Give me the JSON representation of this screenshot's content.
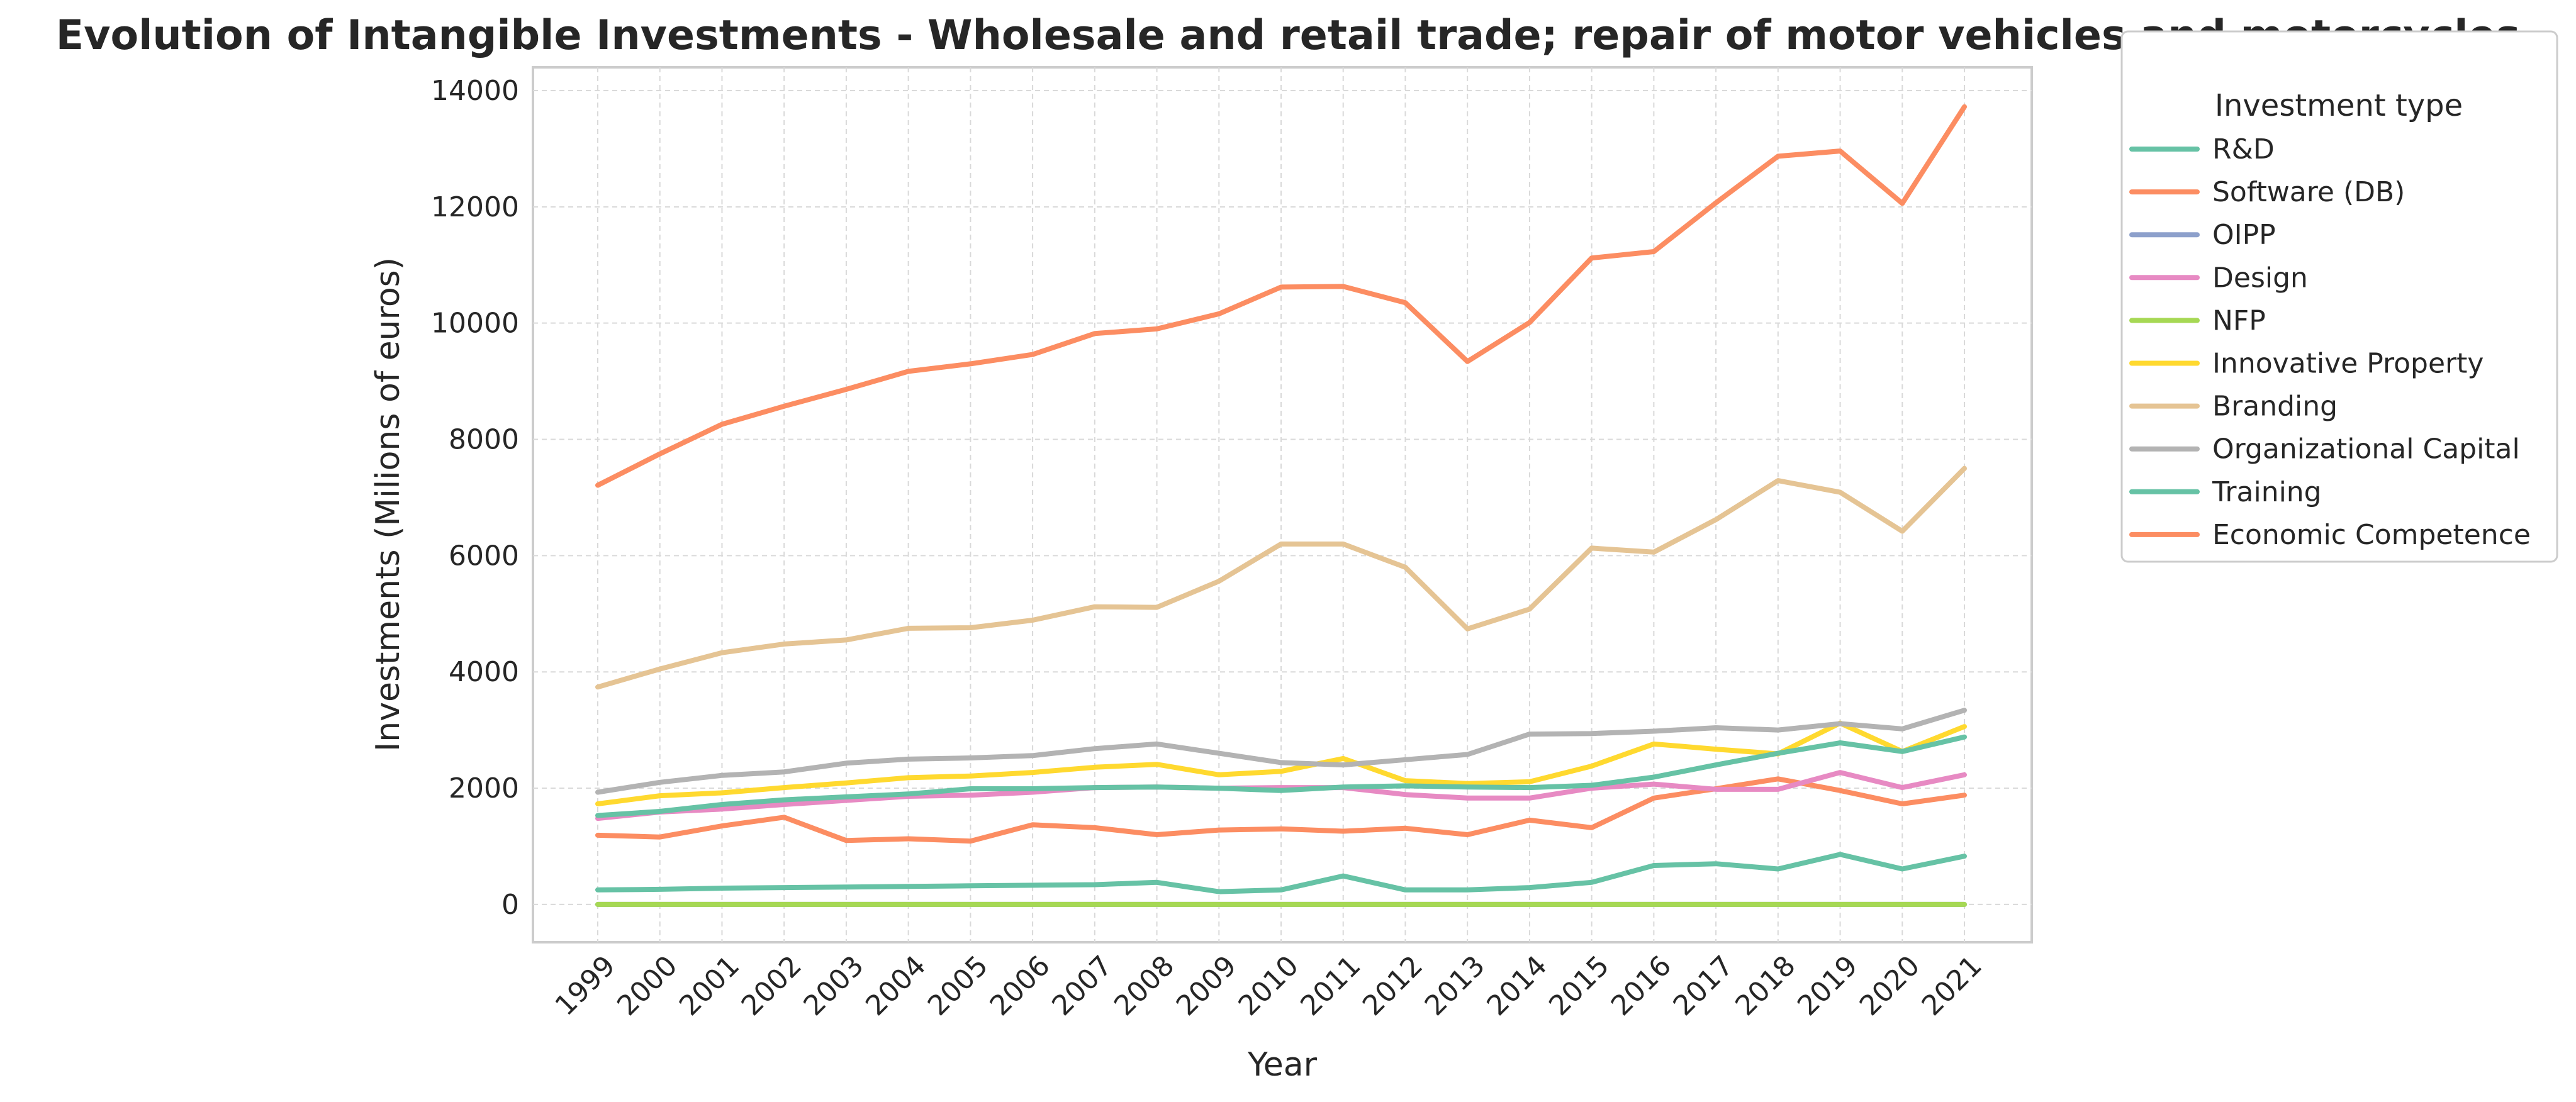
{
  "chart_data": {
    "type": "line",
    "title": "Evolution of Intangible Investments - Wholesale and retail trade; repair of motor vehicles and motorcycles",
    "xlabel": "Year",
    "ylabel": "Investments (Milions of euros)",
    "ylim": [
      -650,
      14400
    ],
    "yticks": [
      0,
      2000,
      4000,
      6000,
      8000,
      10000,
      12000,
      14000
    ],
    "ytick_labels": [
      "0",
      "2000",
      "4000",
      "6000",
      "8000",
      "10000",
      "12000",
      "14000"
    ],
    "grid": true,
    "legend": {
      "title": "Investment type",
      "placement": "outside-right-top"
    },
    "categories": [
      "1999",
      "2000",
      "2001",
      "2002",
      "2003",
      "2004",
      "2005",
      "2006",
      "2007",
      "2008",
      "2009",
      "2010",
      "2011",
      "2012",
      "2013",
      "2014",
      "2015",
      "2016",
      "2017",
      "2018",
      "2019",
      "2020",
      "2021"
    ],
    "series": [
      {
        "name": "R&D",
        "color": "#66c2a5",
        "values": [
          250,
          260,
          280,
          290,
          300,
          310,
          320,
          330,
          340,
          380,
          220,
          250,
          490,
          250,
          250,
          290,
          380,
          670,
          700,
          610,
          860,
          610,
          830
        ]
      },
      {
        "name": "Software (DB)",
        "color": "#fc8d62",
        "values": [
          1190,
          1160,
          1350,
          1500,
          1100,
          1130,
          1090,
          1370,
          1320,
          1200,
          1280,
          1300,
          1260,
          1310,
          1200,
          1450,
          1320,
          1830,
          1990,
          2160,
          1960,
          1730,
          1880
        ]
      },
      {
        "name": "OIPP",
        "color": "#8da0cb",
        "values": [
          0,
          0,
          0,
          0,
          0,
          0,
          0,
          0,
          0,
          0,
          0,
          0,
          0,
          0,
          0,
          0,
          0,
          0,
          0,
          0,
          0,
          0,
          0
        ]
      },
      {
        "name": "Design",
        "color": "#e78ac3",
        "values": [
          1480,
          1590,
          1640,
          1720,
          1790,
          1860,
          1880,
          1930,
          2010,
          2020,
          2000,
          2010,
          2010,
          1890,
          1830,
          1830,
          2000,
          2070,
          1980,
          1980,
          2270,
          2010,
          2230
        ]
      },
      {
        "name": "NFP",
        "color": "#a6d854",
        "values": [
          0,
          0,
          0,
          0,
          0,
          0,
          0,
          0,
          0,
          0,
          0,
          0,
          0,
          0,
          0,
          0,
          0,
          0,
          0,
          0,
          0,
          0,
          0
        ]
      },
      {
        "name": "Innovative Property",
        "color": "#ffd92f",
        "values": [
          1730,
          1870,
          1920,
          2010,
          2090,
          2180,
          2210,
          2270,
          2360,
          2410,
          2230,
          2290,
          2510,
          2130,
          2080,
          2110,
          2380,
          2760,
          2670,
          2590,
          3120,
          2630,
          3060
        ]
      },
      {
        "name": "Branding",
        "color": "#e5c494",
        "values": [
          3740,
          4050,
          4330,
          4480,
          4550,
          4750,
          4760,
          4890,
          5120,
          5110,
          5560,
          6200,
          6200,
          5800,
          4740,
          5080,
          6130,
          6060,
          6620,
          7290,
          7090,
          6420,
          7500
        ]
      },
      {
        "name": "Organizational Capital",
        "color": "#b3b3b3",
        "values": [
          1930,
          2100,
          2220,
          2280,
          2430,
          2500,
          2520,
          2560,
          2680,
          2760,
          2600,
          2440,
          2400,
          2490,
          2580,
          2930,
          2940,
          2980,
          3040,
          3000,
          3110,
          3020,
          3340
        ]
      },
      {
        "name": "Training",
        "color": "#66c2a5",
        "values": [
          1530,
          1600,
          1720,
          1800,
          1850,
          1900,
          1990,
          1990,
          2010,
          2020,
          2000,
          1960,
          2020,
          2040,
          2020,
          2010,
          2050,
          2190,
          2400,
          2600,
          2780,
          2630,
          2880
        ]
      },
      {
        "name": "Economic Competence",
        "color": "#fc8d62",
        "values": [
          7210,
          7750,
          8260,
          8570,
          8860,
          9170,
          9300,
          9460,
          9820,
          9900,
          10160,
          10620,
          10630,
          10350,
          9340,
          10010,
          11120,
          11230,
          12070,
          12870,
          12960,
          12060,
          13720
        ]
      }
    ]
  }
}
